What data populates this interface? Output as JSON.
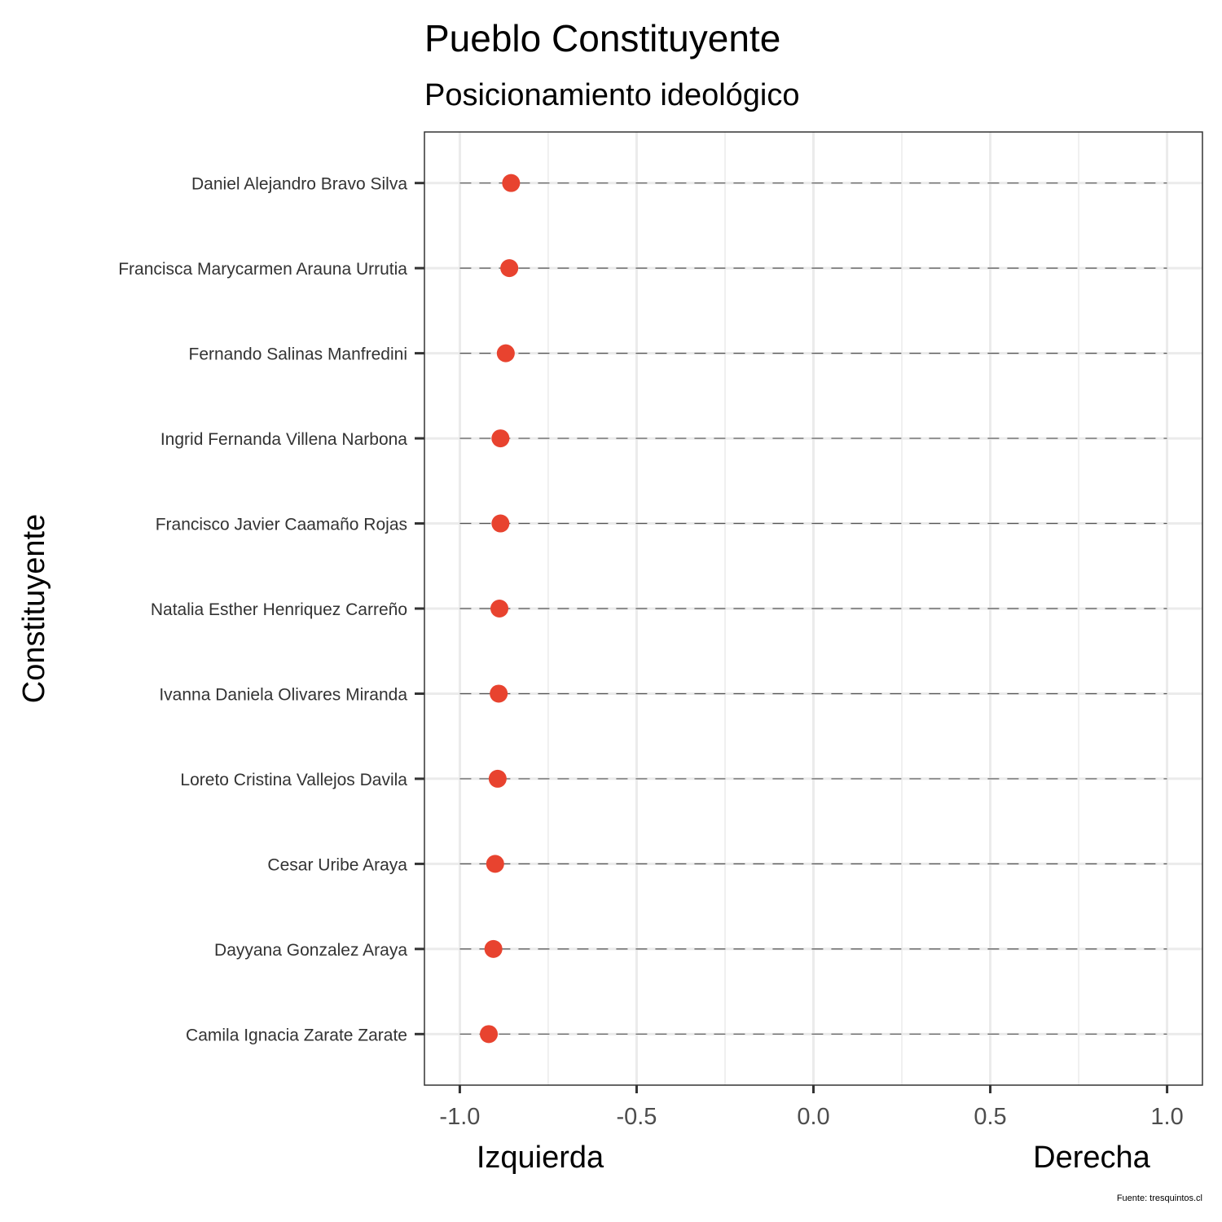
{
  "chart_data": {
    "type": "scatter",
    "title": "Pueblo Constituyente",
    "subtitle": "Posicionamiento ideológico",
    "ylabel": "Constituyente",
    "x_annotations": {
      "left": "Izquierda",
      "right": "Derecha"
    },
    "caption": "Fuente: tresquintos.cl",
    "xlim": [
      -1.1,
      1.1
    ],
    "x_ticks": [
      -1.0,
      -0.5,
      0.0,
      0.5,
      1.0
    ],
    "x_tick_labels": [
      "-1.0",
      "-0.5",
      "0.0",
      "0.5",
      "1.0"
    ],
    "x_minor_ticks": [
      -0.75,
      -0.25,
      0.25,
      0.75
    ],
    "grid": true,
    "segment_range": [
      -1.0,
      1.0
    ],
    "point_color": "#e8432f",
    "categories": [
      "Daniel Alejandro Bravo Silva",
      "Francisca Marycarmen Arauna Urrutia",
      "Fernando Salinas Manfredini",
      "Ingrid Fernanda Villena Narbona",
      "Francisco Javier Caamaño Rojas",
      "Natalia Esther Henriquez Carreño",
      "Ivanna Daniela Olivares Miranda",
      "Loreto Cristina Vallejos Davila",
      "Cesar Uribe Araya",
      "Dayyana Gonzalez Araya",
      "Camila Ignacia Zarate Zarate"
    ],
    "values": [
      -0.855,
      -0.86,
      -0.87,
      -0.885,
      -0.885,
      -0.888,
      -0.89,
      -0.893,
      -0.9,
      -0.905,
      -0.918
    ]
  }
}
